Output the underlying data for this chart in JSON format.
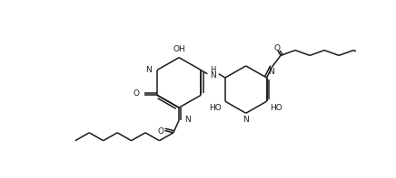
{
  "bg_color": "#ffffff",
  "line_color": "#1a1a1a",
  "line_width": 1.1,
  "figsize": [
    4.36,
    1.97
  ],
  "dpi": 100,
  "xlim": [
    0,
    436
  ],
  "ylim": [
    0,
    197
  ]
}
